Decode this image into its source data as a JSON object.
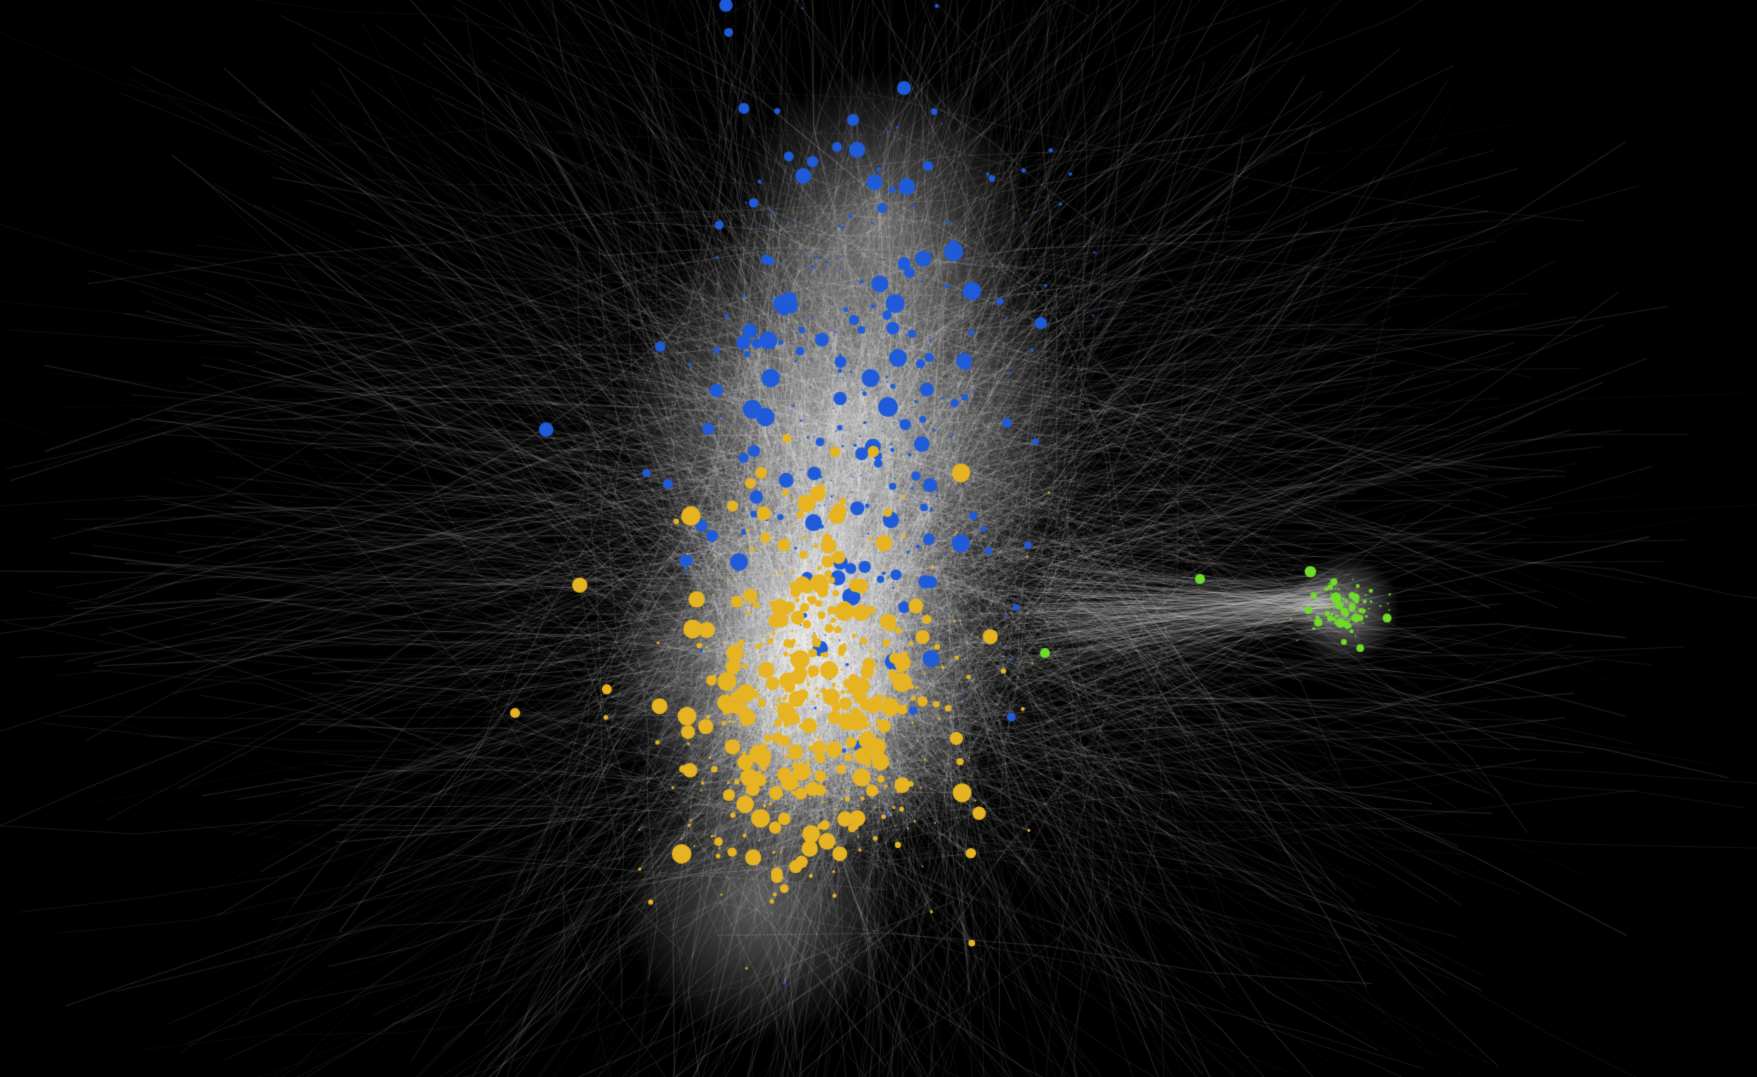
{
  "graph": {
    "type": "network",
    "labels_shown": false,
    "background_color": "#000000",
    "edge_color": "#ffffff",
    "clusters": [
      {
        "id": "blue-cluster",
        "color": "#1f5bd8",
        "relative_share": 0.5
      },
      {
        "id": "yellow-cluster",
        "color": "#e6b422",
        "relative_share": 0.42
      },
      {
        "id": "green-cluster",
        "color": "#6fdc2a",
        "relative_share": 0.08
      }
    ]
  }
}
